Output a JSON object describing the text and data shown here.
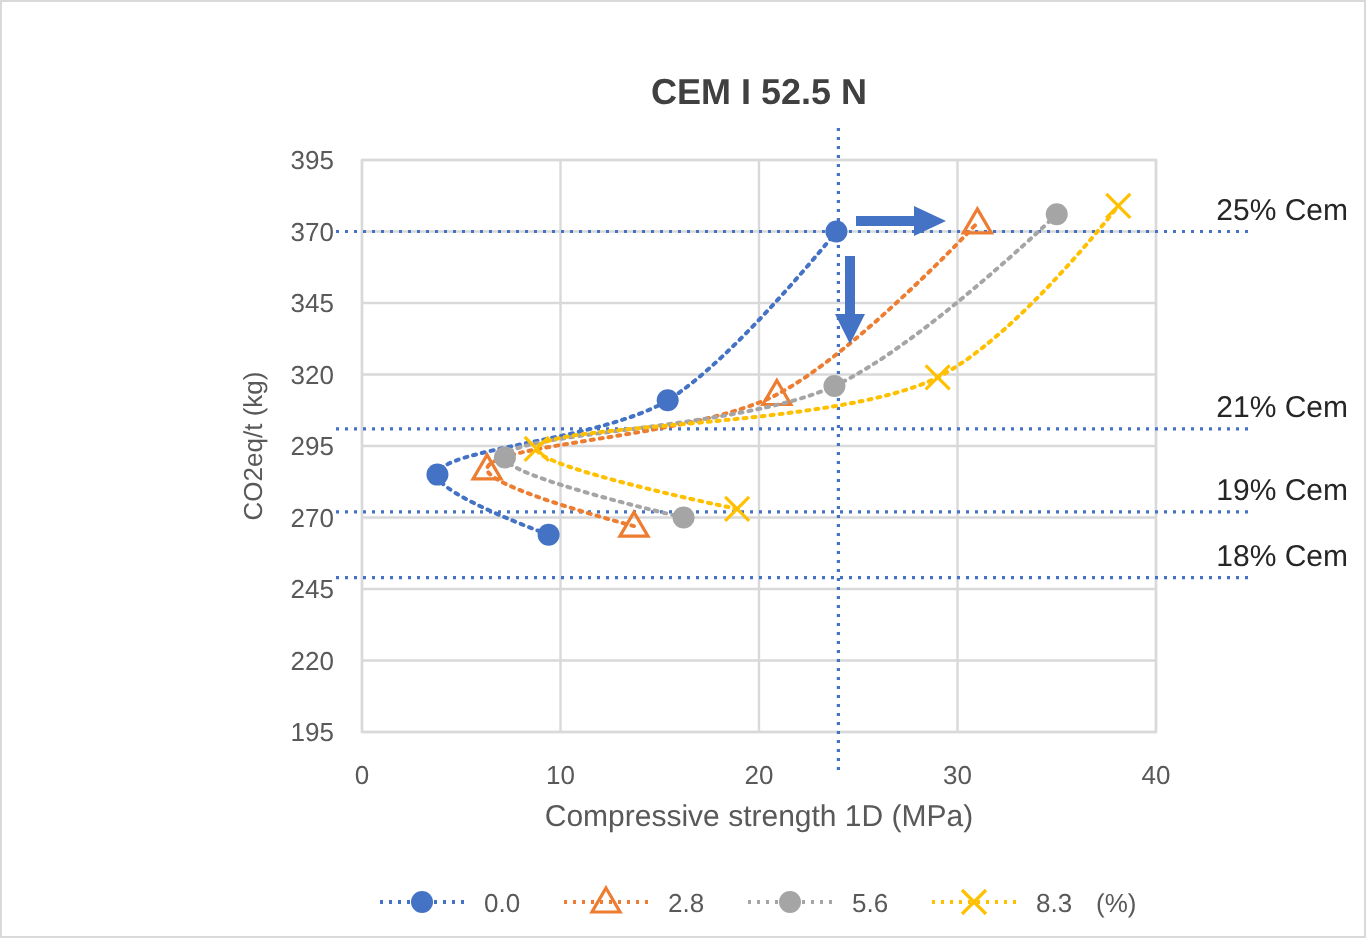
{
  "chart_data": {
    "type": "line",
    "title": "CEM I 52.5 N",
    "xlabel": "Compressive strength 1D (MPa)",
    "ylabel": "CO2eq/t (kg)",
    "legend_title": "(%)",
    "xlim": [
      0,
      40
    ],
    "xticks": [
      0,
      10,
      20,
      30,
      40
    ],
    "ylim": [
      195,
      395
    ],
    "yticks": [
      195,
      220,
      245,
      270,
      295,
      320,
      345,
      370,
      395
    ],
    "grid": true,
    "legend": "bottom",
    "line_style": "dotted",
    "series": [
      {
        "name": "0.0",
        "color": "#4472c4",
        "marker": "circle",
        "x": [
          9.4,
          3.8,
          15.4,
          23.9
        ],
        "values": [
          264,
          285,
          311,
          370
        ]
      },
      {
        "name": "2.8",
        "color": "#ed7d31",
        "marker": "triangle",
        "x": [
          13.7,
          6.3,
          20.9,
          31.0
        ],
        "values": [
          267,
          287,
          313,
          373
        ]
      },
      {
        "name": "5.6",
        "color": "#a5a5a5",
        "marker": "circle",
        "x": [
          16.2,
          7.2,
          23.8,
          35.0
        ],
        "values": [
          270,
          291,
          316,
          376
        ]
      },
      {
        "name": "8.3",
        "color": "#ffc000",
        "marker": "cross",
        "x": [
          18.9,
          8.8,
          29.0,
          38.1
        ],
        "values": [
          273,
          294,
          319,
          379
        ]
      }
    ],
    "ref_lines": [
      {
        "axis": "y",
        "value": 370,
        "label": "25% Cem",
        "color": "#4472c4",
        "line_style": "dotted"
      },
      {
        "axis": "y",
        "value": 301,
        "label": "21% Cem",
        "color": "#4472c4",
        "line_style": "dotted"
      },
      {
        "axis": "y",
        "value": 272,
        "label": "19% Cem",
        "color": "#4472c4",
        "line_style": "dotted"
      },
      {
        "axis": "y",
        "value": 249,
        "label": "18% Cem",
        "color": "#4472c4",
        "line_style": "dotted"
      },
      {
        "axis": "x",
        "value": 24,
        "label": null,
        "color": "#4472c4",
        "line_style": "dotted"
      }
    ]
  }
}
